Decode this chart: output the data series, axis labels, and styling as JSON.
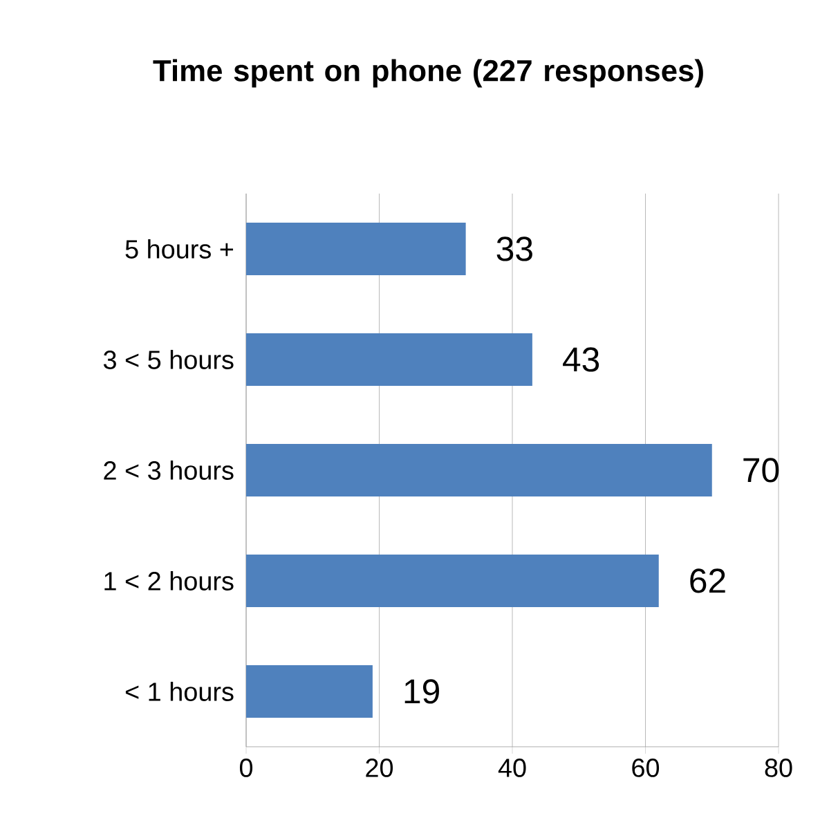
{
  "chart_data": {
    "type": "bar",
    "orientation": "horizontal",
    "title": "Time spent on phone (227 responses)",
    "categories": [
      "5 hours +",
      "3  < 5 hours",
      "2 < 3 hours",
      "1 < 2 hours",
      "< 1 hours"
    ],
    "values": [
      33,
      43,
      70,
      62,
      19
    ],
    "color": "#4f81bd",
    "xlim": [
      0,
      80
    ],
    "xticks": [
      0,
      20,
      40,
      60,
      80
    ],
    "grid": "x",
    "data_labels": true
  }
}
